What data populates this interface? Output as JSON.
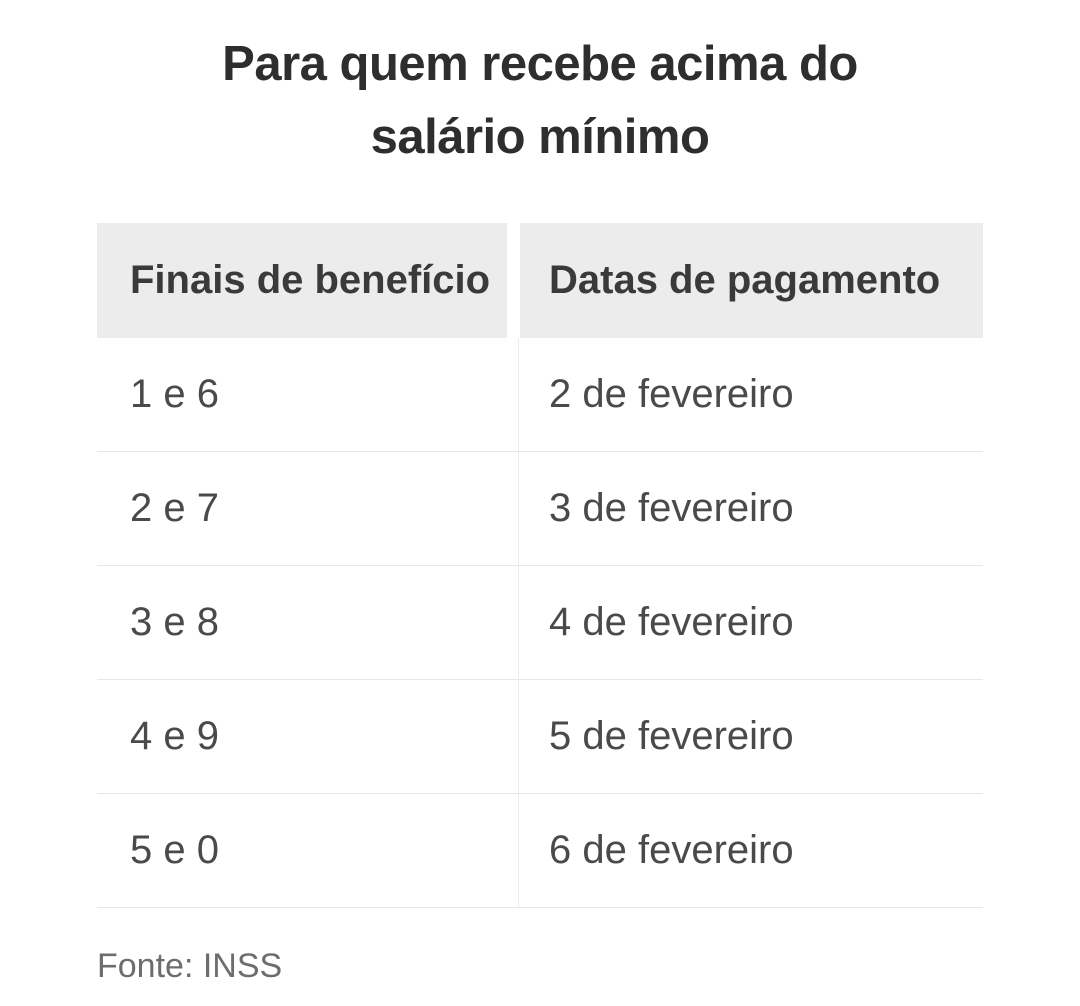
{
  "chart_data": {
    "type": "table",
    "title": "Para quem recebe acima do salário mínimo",
    "columns": [
      "Finais de benefício",
      "Datas de pagamento"
    ],
    "rows": [
      [
        "1 e 6",
        "2 de fevereiro"
      ],
      [
        "2 e 7",
        "3 de fevereiro"
      ],
      [
        "3 e 8",
        "4 de fevereiro"
      ],
      [
        "4 e 9",
        "5 de fevereiro"
      ],
      [
        "5 e 0",
        "6 de fevereiro"
      ]
    ],
    "source": "Fonte: INSS",
    "layout": {
      "legend": "none",
      "grid": "horizontal-row-dividers"
    }
  },
  "colors": {
    "background": "#ffffff",
    "title_text": "#2e2e2e",
    "header_background": "#ececec",
    "header_text": "#3a3a3a",
    "cell_text": "#4a4a4a",
    "divider_line": "#e7e7e7",
    "source_text": "#6d6d6d"
  }
}
